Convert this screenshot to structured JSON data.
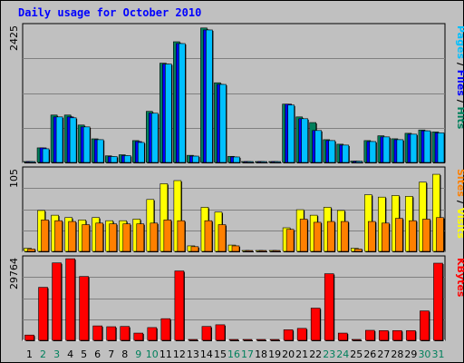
{
  "chart_data": {
    "type": "bar",
    "title": "Daily usage for October 2010",
    "colors": {
      "background": "#c0c0c0",
      "plot": "#c0c0c0",
      "gridline": "#808080",
      "title": "#0000ff",
      "hits": "#00805c",
      "files": "#0000ff",
      "pages": "#00c0ff",
      "visits": "#ffff00",
      "sites": "#ff8000",
      "kbytes": "#ff0000",
      "weekday_label": "#000000",
      "weekend_label": "#00805c"
    },
    "days": [
      "1",
      "2",
      "3",
      "4",
      "5",
      "6",
      "7",
      "8",
      "9",
      "10",
      "11",
      "12",
      "13",
      "14",
      "15",
      "16",
      "17",
      "18",
      "19",
      "20",
      "21",
      "22",
      "23",
      "24",
      "25",
      "26",
      "27",
      "28",
      "29",
      "30",
      "31"
    ],
    "weekend_days": [
      "2",
      "3",
      "9",
      "10",
      "16",
      "17",
      "23",
      "24",
      "30",
      "31"
    ],
    "panels": [
      {
        "id": "hits-files-pages",
        "ymax_label": "2425",
        "ylim": [
          0,
          2425
        ],
        "legend": [
          {
            "text": "Pages",
            "color_key": "pages"
          },
          {
            "text": " / ",
            "color_key": "weekday_label"
          },
          {
            "text": "Files",
            "color_key": "files"
          },
          {
            "text": " / ",
            "color_key": "weekday_label"
          },
          {
            "text": "Hits",
            "color_key": "hits"
          }
        ],
        "series": [
          {
            "name": "Hits",
            "color_key": "hits",
            "values": [
              0,
              258,
              839,
              839,
              662,
              418,
              117,
              136,
              387,
              904,
              1757,
              2136,
              126,
              2380,
              1410,
              108,
              0,
              0,
              0,
              1032,
              806,
              706,
              403,
              323,
              24,
              387,
              472,
              419,
              516,
              575,
              540
            ]
          },
          {
            "name": "Files",
            "color_key": "files",
            "values": [
              0,
              258,
              806,
              806,
              629,
              403,
              105,
              121,
              370,
              871,
              1741,
              2104,
              112,
              2345,
              1381,
              97,
              0,
              0,
              0,
              1032,
              774,
              565,
              387,
              307,
              22,
              370,
              452,
              403,
              500,
              560,
              524
            ]
          },
          {
            "name": "Pages",
            "color_key": "pages",
            "values": [
              0,
              242,
              806,
              790,
              629,
              403,
              105,
              121,
              354,
              871,
              1741,
              2104,
              112,
              2345,
              1381,
              97,
              0,
              0,
              0,
              1016,
              774,
              565,
              387,
              307,
              22,
              370,
              452,
              403,
              500,
              560,
              524
            ]
          }
        ]
      },
      {
        "id": "visits-sites",
        "ymax_label": "105",
        "ylim": [
          0,
          105
        ],
        "legend": [
          {
            "text": "Sites",
            "color_key": "sites"
          },
          {
            "text": " / ",
            "color_key": "weekday_label"
          },
          {
            "text": "Visits",
            "color_key": "visits"
          }
        ],
        "series": [
          {
            "name": "Visits",
            "color_key": "visits",
            "values": [
              4,
              52,
              46,
              43,
              40,
              43,
              39,
              39,
              41,
              66,
              86,
              90,
              7,
              56,
              50,
              8,
              0,
              0,
              0,
              30,
              53,
              46,
              56,
              52,
              4,
              72,
              69,
              71,
              70,
              88,
              98
            ]
          },
          {
            "name": "Sites",
            "color_key": "sites",
            "values": [
              3,
              40,
              39,
              38,
              34,
              36,
              35,
              35,
              35,
              36,
              40,
              39,
              6,
              39,
              34,
              7,
              0,
              0,
              0,
              28,
              41,
              37,
              38,
              38,
              3,
              38,
              36,
              42,
              39,
              41,
              43
            ]
          }
        ]
      },
      {
        "id": "kbytes",
        "ymax_label": "29764",
        "ylim": [
          0,
          29764
        ],
        "legend": [
          {
            "text": "KBytes",
            "color_key": "kbytes"
          }
        ],
        "series": [
          {
            "name": "KBytes",
            "color_key": "kbytes",
            "values": [
              1900,
              19100,
              27900,
              29400,
              23000,
              5200,
              4900,
              5000,
              2600,
              4600,
              7800,
              25000,
              300,
              5000,
              5600,
              300,
              0,
              0,
              0,
              3800,
              4300,
              11600,
              24000,
              2600,
              300,
              3600,
              3500,
              3500,
              3500,
              10600,
              27800
            ]
          }
        ]
      }
    ]
  }
}
